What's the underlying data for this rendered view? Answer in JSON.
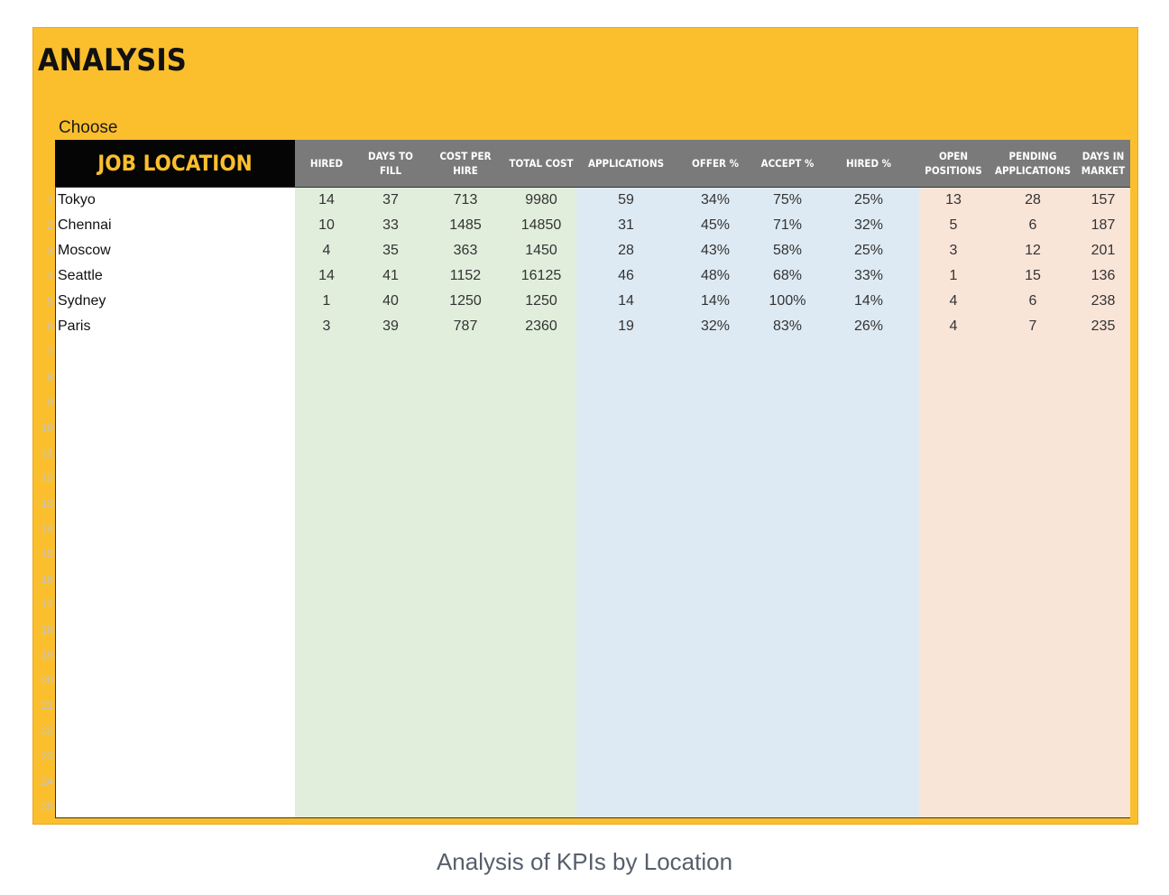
{
  "title": "ANALYSIS",
  "choose_label": "Choose",
  "location_header": "JOB LOCATION",
  "columns": [
    "HIRED",
    "DAYS TO\nFILL",
    "COST PER\nHIRE",
    "TOTAL COST",
    "APPLICATIONS",
    "OFFER %",
    "ACCEPT %",
    "HIRED %",
    "OPEN\nPOSITIONS",
    "PENDING\nAPPLICATIONS",
    "DAYS IN\nMARKET"
  ],
  "rows": [
    {
      "location": "Tokyo",
      "values": [
        "14",
        "37",
        "713",
        "9980",
        "59",
        "34%",
        "75%",
        "25%",
        "13",
        "28",
        "157"
      ]
    },
    {
      "location": "Chennai",
      "values": [
        "10",
        "33",
        "1485",
        "14850",
        "31",
        "45%",
        "71%",
        "32%",
        "5",
        "6",
        "187"
      ]
    },
    {
      "location": "Moscow",
      "values": [
        "4",
        "35",
        "363",
        "1450",
        "28",
        "43%",
        "58%",
        "25%",
        "3",
        "12",
        "201"
      ]
    },
    {
      "location": "Seattle",
      "values": [
        "14",
        "41",
        "1152",
        "16125",
        "46",
        "48%",
        "68%",
        "33%",
        "1",
        "15",
        "136"
      ]
    },
    {
      "location": "Sydney",
      "values": [
        "1",
        "40",
        "1250",
        "1250",
        "14",
        "14%",
        "100%",
        "14%",
        "4",
        "6",
        "238"
      ]
    },
    {
      "location": "Paris",
      "values": [
        "3",
        "39",
        "787",
        "2360",
        "19",
        "32%",
        "83%",
        "26%",
        "4",
        "7",
        "235"
      ]
    }
  ],
  "row_numbers": [
    "1",
    "2",
    "3",
    "4",
    "5",
    "6",
    "7",
    "8",
    "9",
    "10",
    "11",
    "12",
    "13",
    "14",
    "15",
    "16",
    "17",
    "18",
    "19",
    "20",
    "21",
    "22",
    "23",
    "24",
    "25"
  ],
  "caption": "Analysis of KPIs by Location",
  "colors": {
    "accent_yellow": "#fbbf2d",
    "header_gray": "#7a7a7a",
    "band_green": "#e1eedc",
    "band_blue": "#deeaf3",
    "band_orange": "#f9e4d8"
  }
}
